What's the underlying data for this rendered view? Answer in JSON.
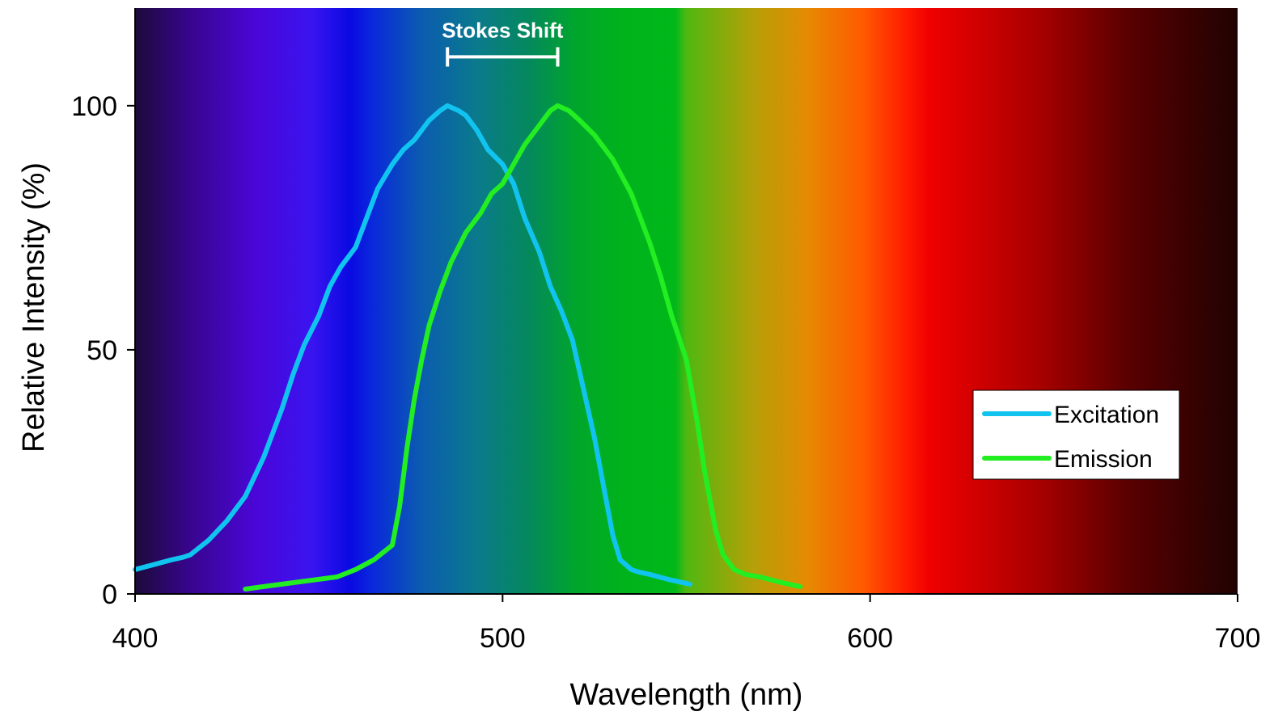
{
  "chart_data": {
    "type": "line",
    "title": "",
    "xlabel": "Wavelength (nm)",
    "ylabel": "Relative Intensity (%)",
    "xlim": [
      400,
      700
    ],
    "ylim": [
      0,
      120
    ],
    "x_ticks": [
      400,
      500,
      600,
      700
    ],
    "y_ticks": [
      0,
      50,
      100
    ],
    "grid": false,
    "legend": "right",
    "background": "visible-spectrum gradient",
    "annotation": {
      "label": "Stokes Shift",
      "from": 485,
      "to": 515,
      "y": 110
    },
    "series": [
      {
        "name": "Excitation",
        "color": "#11c4f0",
        "x": [
          400,
          405,
          410,
          413,
          415,
          420,
          425,
          430,
          435,
          440,
          443,
          446,
          450,
          453,
          456,
          460,
          463,
          466,
          470,
          473,
          476,
          480,
          483,
          485,
          488,
          490,
          493,
          496,
          500,
          503,
          506,
          510,
          513,
          516,
          519,
          522,
          525,
          528,
          530,
          532,
          535,
          537,
          540,
          545,
          551
        ],
        "y": [
          5,
          6,
          7,
          7.5,
          8,
          11,
          15,
          20,
          28,
          38,
          45,
          51,
          57,
          63,
          67,
          71,
          77,
          83,
          88,
          91,
          93,
          97,
          99,
          100,
          99,
          98,
          95,
          91,
          88,
          84,
          77,
          70,
          63,
          58,
          52,
          42,
          32,
          20,
          12,
          7,
          5,
          4.5,
          4,
          3,
          2
        ]
      },
      {
        "name": "Emission",
        "color": "#22ee22",
        "x": [
          430,
          435,
          440,
          445,
          450,
          455,
          460,
          465,
          470,
          472,
          474,
          476,
          478,
          480,
          483,
          486,
          490,
          494,
          497,
          500,
          503,
          506,
          510,
          513,
          515,
          518,
          521,
          525,
          530,
          535,
          540,
          543,
          546,
          550,
          553,
          555,
          558,
          560,
          563,
          566,
          570,
          575,
          581
        ],
        "y": [
          1,
          1.5,
          2,
          2.5,
          3,
          3.5,
          5,
          7,
          10,
          18,
          30,
          40,
          48,
          55,
          62,
          68,
          74,
          78,
          82,
          84,
          88,
          92,
          96,
          99,
          100,
          99,
          97,
          94,
          89,
          82,
          72,
          65,
          57,
          48,
          35,
          25,
          13,
          8,
          5,
          4,
          3.5,
          2.5,
          1.5
        ]
      }
    ]
  }
}
